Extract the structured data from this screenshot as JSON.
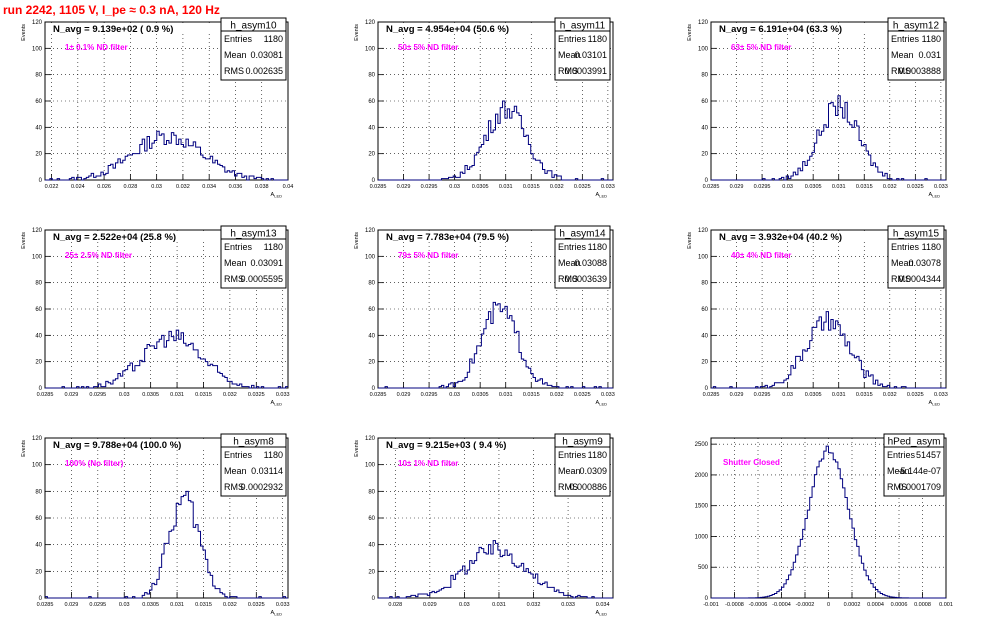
{
  "page_title": "run 2242,  1105 V, I_pe ≈ 0.3 nA, 120 Hz",
  "colors": {
    "histogram": "#00007f",
    "label": "#ff00ff",
    "title": "#ff0000",
    "grid": "#000000"
  },
  "chart_data": [
    {
      "type": "bar",
      "name": "h_asym10",
      "nlabel": "N_avg = 9.139e+02 ( 0.9 %)",
      "filter": "1± 0.1% ND filter",
      "stats": {
        "entries": "1180",
        "mean": "0.03081",
        "rms": "0.002635"
      },
      "ylabel": "Events",
      "xlabel": "A_LED",
      "xlim": [
        0.0215,
        0.04
      ],
      "ylim": [
        0,
        120
      ],
      "xticks": [
        "0.022",
        "0.024",
        "0.026",
        "0.028",
        "0.03",
        "0.032",
        "0.034",
        "0.036",
        "0.038",
        "0.04"
      ],
      "yticks": [
        "0",
        "20",
        "40",
        "60",
        "80",
        "100",
        "120"
      ]
    },
    {
      "type": "bar",
      "name": "h_asym11",
      "nlabel": "N_avg = 4.954e+04 (50.6 %)",
      "filter": "50± 5% ND filter",
      "stats": {
        "entries": "1180",
        "mean": "0.03101",
        "rms": "0.0003991"
      },
      "ylabel": "Events",
      "xlabel": "A_LED",
      "xlim": [
        0.0285,
        0.0331
      ],
      "ylim": [
        0,
        120
      ],
      "xticks": [
        "0.0285",
        "0.029",
        "0.0295",
        "0.03",
        "0.0305",
        "0.031",
        "0.0315",
        "0.032",
        "0.0325",
        "0.033"
      ],
      "yticks": [
        "0",
        "20",
        "40",
        "60",
        "80",
        "100",
        "120"
      ]
    },
    {
      "type": "bar",
      "name": "h_asym12",
      "nlabel": "N_avg = 6.191e+04 (63.3 %)",
      "filter": "63± 5% ND filter",
      "stats": {
        "entries": "1180",
        "mean": "0.031",
        "rms": "0.0003888"
      },
      "ylabel": "Events",
      "xlabel": "A_LED",
      "xlim": [
        0.0285,
        0.0331
      ],
      "ylim": [
        0,
        120
      ],
      "xticks": [
        "0.0285",
        "0.029",
        "0.0295",
        "0.03",
        "0.0305",
        "0.031",
        "0.0315",
        "0.032",
        "0.0325",
        "0.033"
      ],
      "yticks": [
        "0",
        "20",
        "40",
        "60",
        "80",
        "100",
        "120"
      ]
    },
    {
      "type": "bar",
      "name": "h_asym13",
      "nlabel": "N_avg = 2.522e+04 (25.8 %)",
      "filter": "25± 2.5% ND filter",
      "stats": {
        "entries": "1180",
        "mean": "0.03091",
        "rms": "0.0005595"
      },
      "ylabel": "Events",
      "xlabel": "A_LED",
      "xlim": [
        0.0285,
        0.0331
      ],
      "ylim": [
        0,
        120
      ],
      "xticks": [
        "0.0285",
        "0.029",
        "0.0295",
        "0.03",
        "0.0305",
        "0.031",
        "0.0315",
        "0.032",
        "0.0325",
        "0.033"
      ],
      "yticks": [
        "0",
        "20",
        "40",
        "60",
        "80",
        "100",
        "120"
      ]
    },
    {
      "type": "bar",
      "name": "h_asym14",
      "nlabel": "N_avg = 7.783e+04 (79.5 %)",
      "filter": "79± 5% ND filter",
      "stats": {
        "entries": "1180",
        "mean": "0.03088",
        "rms": "0.0003639"
      },
      "ylabel": "Events",
      "xlabel": "A_LED",
      "xlim": [
        0.0285,
        0.0331
      ],
      "ylim": [
        0,
        120
      ],
      "xticks": [
        "0.0285",
        "0.029",
        "0.0295",
        "0.03",
        "0.0305",
        "0.031",
        "0.0315",
        "0.032",
        "0.0325",
        "0.033"
      ],
      "yticks": [
        "0",
        "20",
        "40",
        "60",
        "80",
        "100",
        "120"
      ]
    },
    {
      "type": "bar",
      "name": "h_asym15",
      "nlabel": "N_avg = 3.932e+04 (40.2 %)",
      "filter": "40± 4% ND filter",
      "stats": {
        "entries": "1180",
        "mean": "0.03078",
        "rms": "0.0004344"
      },
      "ylabel": "Events",
      "xlabel": "A_LED",
      "xlim": [
        0.0285,
        0.0331
      ],
      "ylim": [
        0,
        120
      ],
      "xticks": [
        "0.0285",
        "0.029",
        "0.0295",
        "0.03",
        "0.0305",
        "0.031",
        "0.0315",
        "0.032",
        "0.0325",
        "0.033"
      ],
      "yticks": [
        "0",
        "20",
        "40",
        "60",
        "80",
        "100",
        "120"
      ]
    },
    {
      "type": "bar",
      "name": "h_asym8",
      "nlabel": "N_avg = 9.788e+04 (100.0 %)",
      "filter": "100% (No filter)",
      "stats": {
        "entries": "1180",
        "mean": "0.03114",
        "rms": "0.0002932"
      },
      "ylabel": "Events",
      "xlabel": "A_LED",
      "xlim": [
        0.0285,
        0.0331
      ],
      "ylim": [
        0,
        120
      ],
      "xticks": [
        "0.0285",
        "0.029",
        "0.0295",
        "0.03",
        "0.0305",
        "0.031",
        "0.0315",
        "0.032",
        "0.0325",
        "0.033"
      ],
      "yticks": [
        "0",
        "20",
        "40",
        "60",
        "80",
        "100",
        "120"
      ]
    },
    {
      "type": "bar",
      "name": "h_asym9",
      "nlabel": "N_avg = 9.215e+03 ( 9.4 %)",
      "filter": "10± 1% ND filter",
      "stats": {
        "entries": "1180",
        "mean": "0.0309",
        "rms": "0.000886"
      },
      "ylabel": "Events",
      "xlabel": "A_LED",
      "xlim": [
        0.0275,
        0.0343
      ],
      "ylim": [
        0,
        120
      ],
      "xticks": [
        "0.028",
        "0.029",
        "0.03",
        "0.031",
        "0.032",
        "0.033",
        "0.034"
      ],
      "yticks": [
        "0",
        "20",
        "40",
        "60",
        "80",
        "100",
        "120"
      ]
    },
    {
      "type": "bar",
      "name": "hPed_asym",
      "nlabel": "",
      "filter": "Shutter Closed",
      "stats": {
        "entries": "51457",
        "mean": "-5.144e-07",
        "rms": "0.0001709"
      },
      "ylabel": "",
      "xlabel": "",
      "xlim": [
        -0.001,
        0.001
      ],
      "ylim": [
        0,
        2600
      ],
      "xticks": [
        "-0.001",
        "-0.0008",
        "-0.0006",
        "-0.0004",
        "-0.0002",
        "0",
        "0.0002",
        "0.0004",
        "0.0006",
        "0.0008",
        "0.001"
      ],
      "yticks": [
        "0",
        "500",
        "1000",
        "1500",
        "2000",
        "2500"
      ]
    }
  ]
}
